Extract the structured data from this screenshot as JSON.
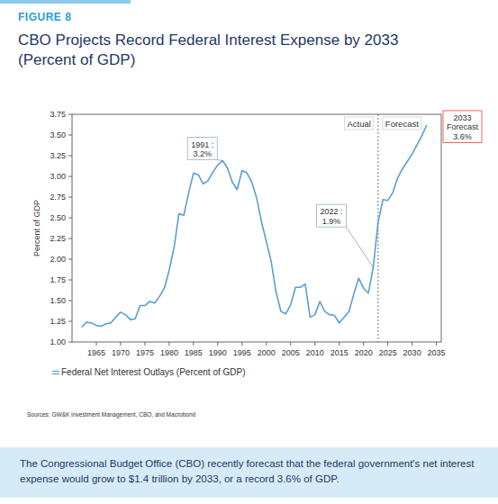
{
  "figure_label": "FIGURE 8",
  "source": "Sources: GW&K Investment Management, CBO, and Macrobond",
  "caption": "The Congressional Budget Office (CBO) recently forecast that the federal government's net interest expense would grow to $1.4 trillion by 2033, or a record 3.6% of GDP.",
  "chart_data": {
    "type": "line",
    "title": [
      "CBO Projects Record Federal Interest Expense by 2033",
      "(Percent of GDP)"
    ],
    "y_label": "Percent of GDP",
    "x": [
      1962,
      1963,
      1964,
      1965,
      1966,
      1967,
      1968,
      1969,
      1970,
      1971,
      1972,
      1973,
      1974,
      1975,
      1976,
      1977,
      1978,
      1979,
      1980,
      1981,
      1982,
      1983,
      1984,
      1985,
      1986,
      1987,
      1988,
      1989,
      1990,
      1991,
      1992,
      1993,
      1994,
      1995,
      1996,
      1997,
      1998,
      1999,
      2000,
      2001,
      2002,
      2003,
      2004,
      2005,
      2006,
      2007,
      2008,
      2009,
      2010,
      2011,
      2012,
      2013,
      2014,
      2015,
      2016,
      2017,
      2018,
      2019,
      2020,
      2021,
      2022,
      2023,
      2024,
      2025,
      2026,
      2027,
      2028,
      2029,
      2030,
      2031,
      2032,
      2033
    ],
    "series": [
      {
        "name": "Federal Net Interest Outlays (Percent of GDP)",
        "color": "#5a9fd4",
        "values": [
          1.18,
          1.24,
          1.23,
          1.2,
          1.19,
          1.22,
          1.23,
          1.3,
          1.36,
          1.33,
          1.27,
          1.28,
          1.44,
          1.44,
          1.49,
          1.47,
          1.55,
          1.65,
          1.87,
          2.14,
          2.55,
          2.53,
          2.8,
          3.04,
          3.02,
          2.91,
          2.95,
          3.05,
          3.14,
          3.19,
          3.1,
          2.93,
          2.84,
          3.07,
          3.04,
          2.93,
          2.74,
          2.45,
          2.21,
          1.97,
          1.6,
          1.37,
          1.34,
          1.45,
          1.66,
          1.66,
          1.7,
          1.3,
          1.33,
          1.49,
          1.37,
          1.33,
          1.32,
          1.23,
          1.3,
          1.37,
          1.58,
          1.77,
          1.65,
          1.59,
          1.9,
          2.45,
          2.72,
          2.71,
          2.8,
          2.98,
          3.09,
          3.18,
          3.27,
          3.38,
          3.49,
          3.62
        ]
      }
    ],
    "xlim": [
      1960,
      2036
    ],
    "xticks": [
      1965,
      1970,
      1975,
      1980,
      1985,
      1990,
      1995,
      2000,
      2005,
      2010,
      2015,
      2020,
      2025,
      2030,
      2035
    ],
    "ylim": [
      1,
      3.75
    ],
    "yticks": [
      {
        "value": 1,
        "label": "1.00"
      },
      1.25,
      {
        "value": 1.5,
        "label": "1.50"
      },
      1.75,
      {
        "value": 2,
        "label": "2.00"
      },
      2.25,
      {
        "value": 2.5,
        "label": "2.50"
      },
      2.75,
      {
        "value": 3,
        "label": "3.00"
      },
      3.25,
      {
        "value": 3.5,
        "label": "3.50"
      },
      3.75
    ],
    "grid": false,
    "legend": "bottom",
    "forecast_start": 2023,
    "region_labels": [
      "Actual",
      "Forecast"
    ],
    "annotations": [
      {
        "x": 1991,
        "lines": [
          "1991 :",
          "3.2%"
        ]
      },
      {
        "x": 2022,
        "lines": [
          "2022 :",
          "1.9%"
        ]
      },
      {
        "x": 2033,
        "lines": [
          "2033",
          "Forecast",
          "3.6%"
        ]
      }
    ]
  }
}
